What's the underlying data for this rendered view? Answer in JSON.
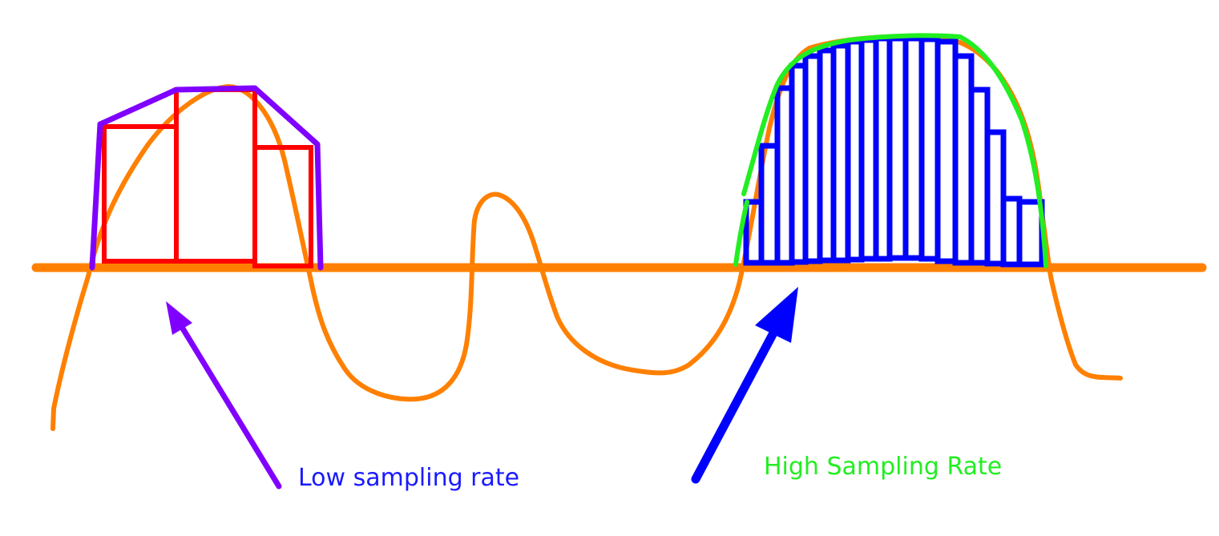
{
  "labels": {
    "low": "Low sampling rate",
    "high": "High Sampling Rate"
  },
  "colors": {
    "background": "#ffffff",
    "signal": "#ff8000",
    "low_bars": "#ff0000",
    "low_envelope": "#8000ff",
    "low_arrow": "#8000ff",
    "high_bars": "#0000ff",
    "high_envelope": "#22ee22",
    "high_arrow": "#0000ff",
    "low_text": "#1a1aff",
    "high_text": "#22ee22"
  }
}
